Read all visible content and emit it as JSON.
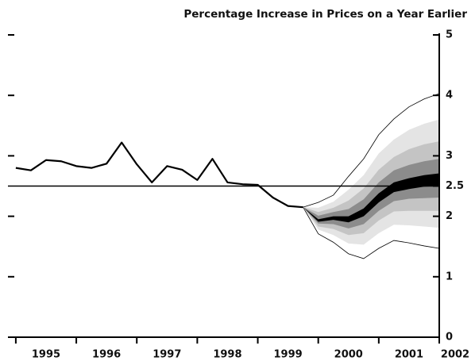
{
  "chart_data": {
    "type": "fan",
    "title": "Percentage Increase in Prices on a Year Earlier",
    "xlim": [
      1994.87,
      2002
    ],
    "ylim": [
      0,
      5
    ],
    "xticks": [
      1995,
      1996,
      1997,
      1998,
      1999,
      2000,
      2001,
      2002
    ],
    "yticks": [
      0,
      1,
      2,
      2.5,
      3,
      4,
      5
    ],
    "reference_line": 2.5,
    "color": "#000000",
    "x": [
      1995,
      1995.25,
      1995.5,
      1995.75,
      1996,
      1996.25,
      1996.5,
      1996.75,
      1997,
      1997.25,
      1997.5,
      1997.75,
      1998,
      1998.25,
      1998.5,
      1998.75,
      1999,
      1999.25,
      1999.5,
      1999.75
    ],
    "values": [
      2.8,
      2.76,
      2.93,
      2.91,
      2.83,
      2.8,
      2.87,
      3.22,
      2.86,
      2.56,
      2.83,
      2.77,
      2.6,
      2.95,
      2.56,
      2.53,
      2.52,
      2.31,
      2.17,
      2.15
    ],
    "fan": {
      "x": [
        1999.75,
        2000,
        2000.25,
        2000.5,
        2000.75,
        2001,
        2001.25,
        2001.5,
        2001.75,
        2002
      ],
      "bands": [
        {
          "color": "#ffffff",
          "upper": [
            2.15,
            2.23,
            2.35,
            2.66,
            2.95,
            3.35,
            3.61,
            3.81,
            3.94,
            4.03
          ],
          "lower": [
            2.15,
            1.71,
            1.57,
            1.38,
            1.3,
            1.47,
            1.6,
            1.56,
            1.51,
            1.47
          ]
        },
        {
          "color": "#e4e4e4",
          "upper": [
            2.15,
            2.14,
            2.24,
            2.44,
            2.68,
            3.04,
            3.27,
            3.43,
            3.53,
            3.6
          ],
          "lower": [
            2.15,
            1.78,
            1.69,
            1.55,
            1.53,
            1.72,
            1.86,
            1.85,
            1.83,
            1.81
          ]
        },
        {
          "color": "#c4c4c4",
          "upper": [
            2.15,
            2.07,
            2.14,
            2.26,
            2.46,
            2.77,
            2.98,
            3.11,
            3.19,
            3.24
          ],
          "lower": [
            2.15,
            1.83,
            1.79,
            1.69,
            1.72,
            1.93,
            2.08,
            2.09,
            2.09,
            2.09
          ]
        },
        {
          "color": "#8c8c8c",
          "upper": [
            2.15,
            2.01,
            2.07,
            2.12,
            2.28,
            2.56,
            2.76,
            2.85,
            2.91,
            2.95
          ],
          "lower": [
            2.15,
            1.88,
            1.87,
            1.8,
            1.87,
            2.09,
            2.25,
            2.29,
            2.3,
            2.31
          ]
        },
        {
          "color": "#000000",
          "upper": [
            2.15,
            1.95,
            2.0,
            2.0,
            2.13,
            2.38,
            2.56,
            2.63,
            2.68,
            2.71
          ],
          "lower": [
            2.15,
            1.91,
            1.94,
            1.9,
            2.0,
            2.23,
            2.4,
            2.45,
            2.49,
            2.5
          ]
        }
      ]
    }
  }
}
